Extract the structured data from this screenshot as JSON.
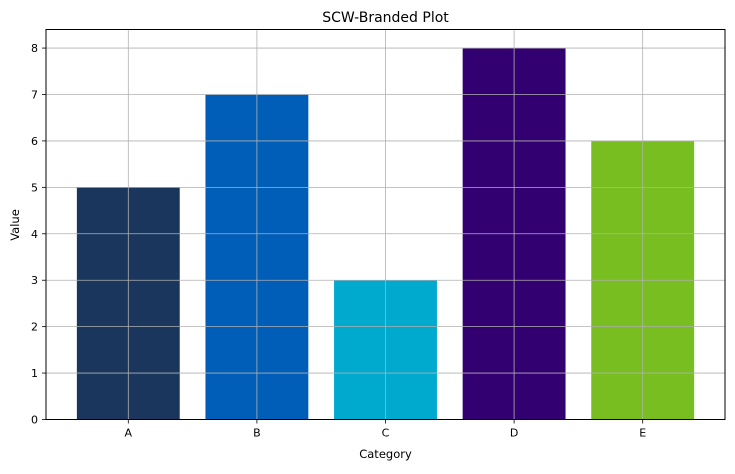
{
  "chart_data": {
    "type": "bar",
    "title": "SCW-Branded Plot",
    "xlabel": "Category",
    "ylabel": "Value",
    "categories": [
      "A",
      "B",
      "C",
      "D",
      "E"
    ],
    "values": [
      5,
      7,
      3,
      8,
      6
    ],
    "colors": [
      "#1b365d",
      "#005eb8",
      "#00a9ce",
      "#330072",
      "#78be20"
    ],
    "ylim": [
      0,
      8.4
    ],
    "yticks": [
      0,
      1,
      2,
      3,
      4,
      5,
      6,
      7,
      8
    ],
    "grid": true
  }
}
